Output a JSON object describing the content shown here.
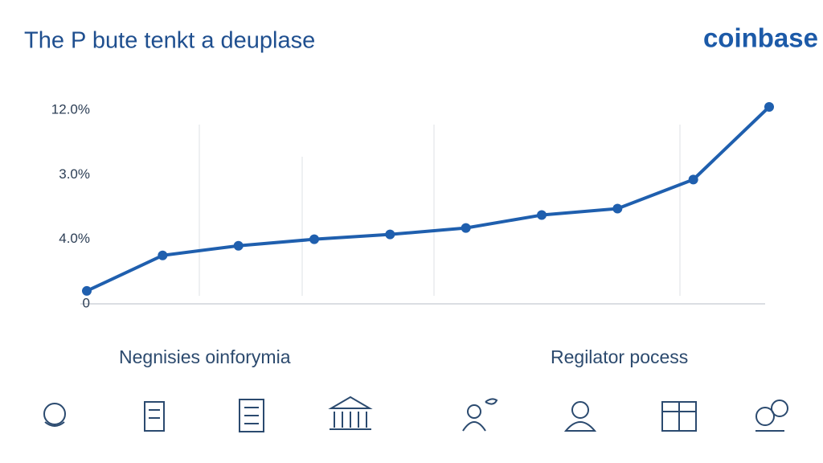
{
  "chart_data": {
    "type": "line",
    "title": "The P bute tenkt a deuplase",
    "brand": "coinbase",
    "y_labels": [
      "12.0%",
      "3.0%",
      "4.0%",
      "0"
    ],
    "categories": [
      null,
      null,
      null,
      null,
      null,
      null,
      null,
      null,
      null,
      null
    ],
    "values": [
      0.8,
      3.0,
      3.6,
      4.0,
      4.3,
      4.7,
      5.5,
      5.9,
      7.7,
      12.2
    ],
    "ylim": [
      0,
      12.2
    ],
    "color": "#1f5fae",
    "grid": true,
    "annotations": [
      "Negnisies oinforymia",
      "Regilator pocess"
    ]
  }
}
